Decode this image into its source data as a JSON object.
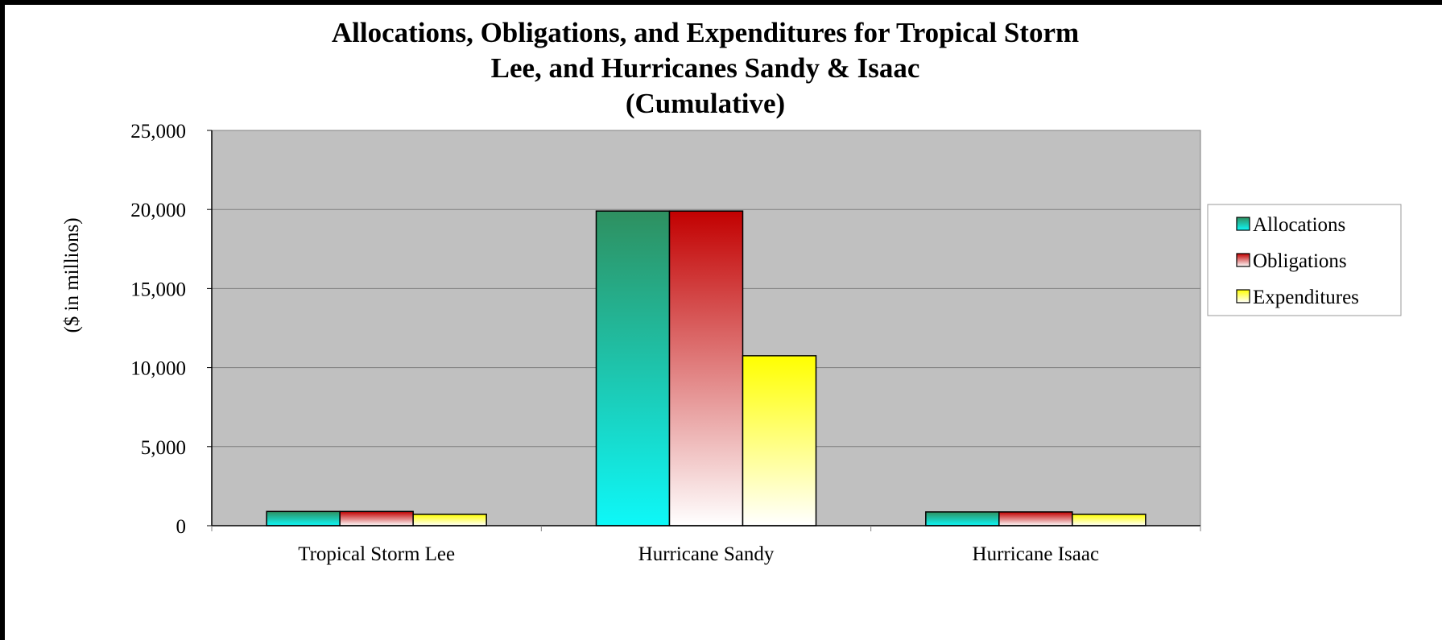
{
  "chart_data": {
    "type": "bar",
    "title_lines": [
      "Allocations, Obligations, and Expenditures for Tropical Storm",
      "Lee, and Hurricanes Sandy & Isaac",
      "(Cumulative)"
    ],
    "ylabel": "($ in millions)",
    "xlabel": "",
    "ylim": [
      0,
      25000
    ],
    "yticks": [
      0,
      5000,
      10000,
      15000,
      20000,
      25000
    ],
    "ytick_labels": [
      "0",
      "5,000",
      "10,000",
      "15,000",
      "20,000",
      "25,000"
    ],
    "categories": [
      "Tropical Storm Lee",
      "Hurricane Sandy",
      "Hurricane Isaac"
    ],
    "series": [
      {
        "name": "Allocations",
        "values": [
          900,
          19900,
          870
        ],
        "colors": [
          "#0ef8f8",
          "#2e9060"
        ]
      },
      {
        "name": "Obligations",
        "values": [
          900,
          19900,
          870
        ],
        "colors": [
          "#ffffff",
          "#c20000"
        ]
      },
      {
        "name": "Expenditures",
        "values": [
          720,
          10750,
          720
        ],
        "colors": [
          "#ffffff",
          "#ffff00"
        ]
      }
    ],
    "plot_background": "#c0c0c0",
    "grid": true,
    "legend_position": "right"
  }
}
